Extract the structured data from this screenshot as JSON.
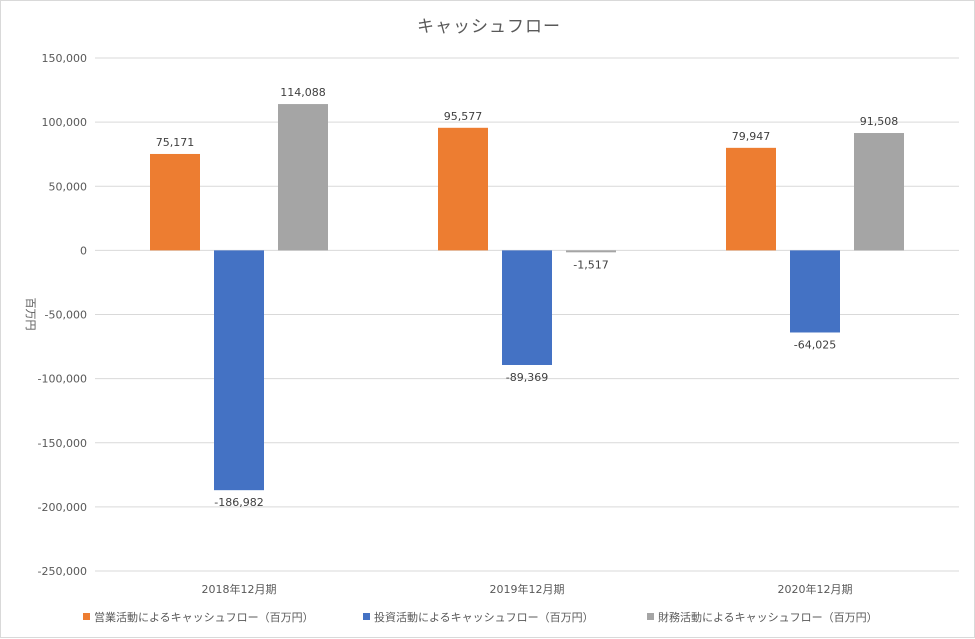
{
  "chart_data": {
    "type": "bar",
    "title": "キャッシュフロー",
    "ylabel": "百万円",
    "xlabel": "",
    "categories": [
      "2018年12月期",
      "2019年12月期",
      "2020年12月期"
    ],
    "ylim": [
      -250000,
      150000
    ],
    "yticks": [
      150000,
      100000,
      50000,
      0,
      -50000,
      -100000,
      -150000,
      -200000,
      -250000
    ],
    "ytick_labels": [
      "150,000",
      "100,000",
      "50,000",
      "0",
      "-50,000",
      "-100,000",
      "-150,000",
      "-200,000",
      "-250,000"
    ],
    "grid": true,
    "legend_position": "bottom",
    "series": [
      {
        "name": "営業活動によるキャッシュフロー（百万円）",
        "color": "#ed7d31",
        "values": [
          75171,
          95577,
          79947
        ],
        "labels": [
          "75,171",
          "95,577",
          "79,947"
        ]
      },
      {
        "name": "投資活動によるキャッシュフロー（百万円）",
        "color": "#4472c4",
        "values": [
          -186982,
          -89369,
          -64025
        ],
        "labels": [
          "-186,982",
          "-89,369",
          "-64,025"
        ]
      },
      {
        "name": "財務活動によるキャッシュフロー（百万円）",
        "color": "#a5a5a5",
        "values": [
          114088,
          -1517,
          91508
        ],
        "labels": [
          "114,088",
          "-1,517",
          "91,508"
        ]
      }
    ]
  }
}
